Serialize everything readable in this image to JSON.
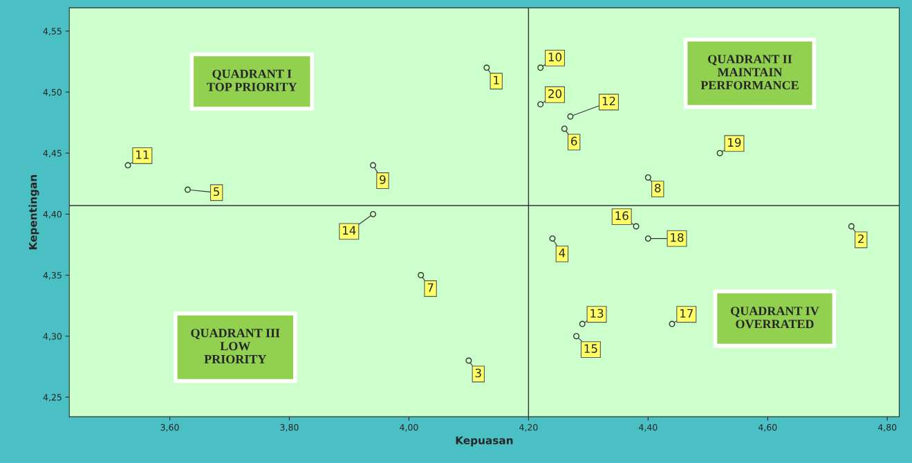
{
  "chart_data": {
    "type": "scatter",
    "xlabel": "Kepuasan",
    "ylabel": "Kepentingan",
    "x": [
      4.13,
      4.74,
      4.1,
      4.24,
      3.63,
      4.26,
      4.02,
      4.4,
      3.94,
      4.22,
      3.53,
      4.27,
      4.29,
      3.94,
      4.28,
      4.38,
      4.44,
      4.4,
      4.52,
      4.22
    ],
    "series": [
      {
        "color": "#333333",
        "values": [
          4.52,
          4.39,
          4.28,
          4.38,
          4.42,
          4.47,
          4.35,
          4.43,
          4.44,
          4.52,
          4.44,
          4.48,
          4.31,
          4.4,
          4.3,
          4.39,
          4.31,
          4.38,
          4.45,
          4.49
        ]
      }
    ],
    "marker": "circle",
    "grid": false,
    "legend": false,
    "xlim": [
      3.432,
      4.82
    ],
    "ylim": [
      4.234,
      4.569
    ],
    "xticks": [
      {
        "value": 3.6,
        "label": "3,60"
      },
      {
        "value": 3.8,
        "label": "3,80"
      },
      {
        "value": 4.0,
        "label": "4,00"
      },
      {
        "value": 4.2,
        "label": "4,20"
      },
      {
        "value": 4.4,
        "label": "4,40"
      },
      {
        "value": 4.6,
        "label": "4,60"
      },
      {
        "value": 4.8,
        "label": "4,80"
      }
    ],
    "yticks": [
      {
        "value": 4.25,
        "label": "4,25"
      },
      {
        "value": 4.3,
        "label": "4,30"
      },
      {
        "value": 4.35,
        "label": "4,35"
      },
      {
        "value": 4.4,
        "label": "4,40"
      },
      {
        "value": 4.45,
        "label": "4,45"
      },
      {
        "value": 4.5,
        "label": "4,50"
      },
      {
        "value": 4.55,
        "label": "4,55"
      }
    ],
    "ref_lines": [
      {
        "axis": "x",
        "value": 4.2,
        "color": "#333333"
      },
      {
        "axis": "y",
        "value": 4.407,
        "color": "#333333"
      }
    ],
    "annotations": [
      {
        "text": "1",
        "x": 4.13,
        "y": 4.52
      },
      {
        "text": "2",
        "x": 4.74,
        "y": 4.39
      },
      {
        "text": "3",
        "x": 4.1,
        "y": 4.28
      },
      {
        "text": "4",
        "x": 4.24,
        "y": 4.38
      },
      {
        "text": "5",
        "x": 3.63,
        "y": 4.42
      },
      {
        "text": "6",
        "x": 4.26,
        "y": 4.47
      },
      {
        "text": "7",
        "x": 4.02,
        "y": 4.35
      },
      {
        "text": "8",
        "x": 4.4,
        "y": 4.43
      },
      {
        "text": "9",
        "x": 3.94,
        "y": 4.44
      },
      {
        "text": "10",
        "x": 4.22,
        "y": 4.52
      },
      {
        "text": "11",
        "x": 3.53,
        "y": 4.44
      },
      {
        "text": "12",
        "x": 4.27,
        "y": 4.48
      },
      {
        "text": "13",
        "x": 4.29,
        "y": 4.31
      },
      {
        "text": "14",
        "x": 3.94,
        "y": 4.4
      },
      {
        "text": "15",
        "x": 4.28,
        "y": 4.3
      },
      {
        "text": "16",
        "x": 4.38,
        "y": 4.39
      },
      {
        "text": "17",
        "x": 4.44,
        "y": 4.31
      },
      {
        "text": "18",
        "x": 4.4,
        "y": 4.38
      },
      {
        "text": "19",
        "x": 4.52,
        "y": 4.45
      },
      {
        "text": "20",
        "x": 4.22,
        "y": 4.49
      },
      "QUADRANT I\nTOP PRIORITY",
      "QUADRANT II\nMAINTAIN\nPERFORMANCE",
      "QUADRANT III\nLOW\nPRIORITY",
      "QUADRANT IV\nOVERRATED"
    ]
  }
}
